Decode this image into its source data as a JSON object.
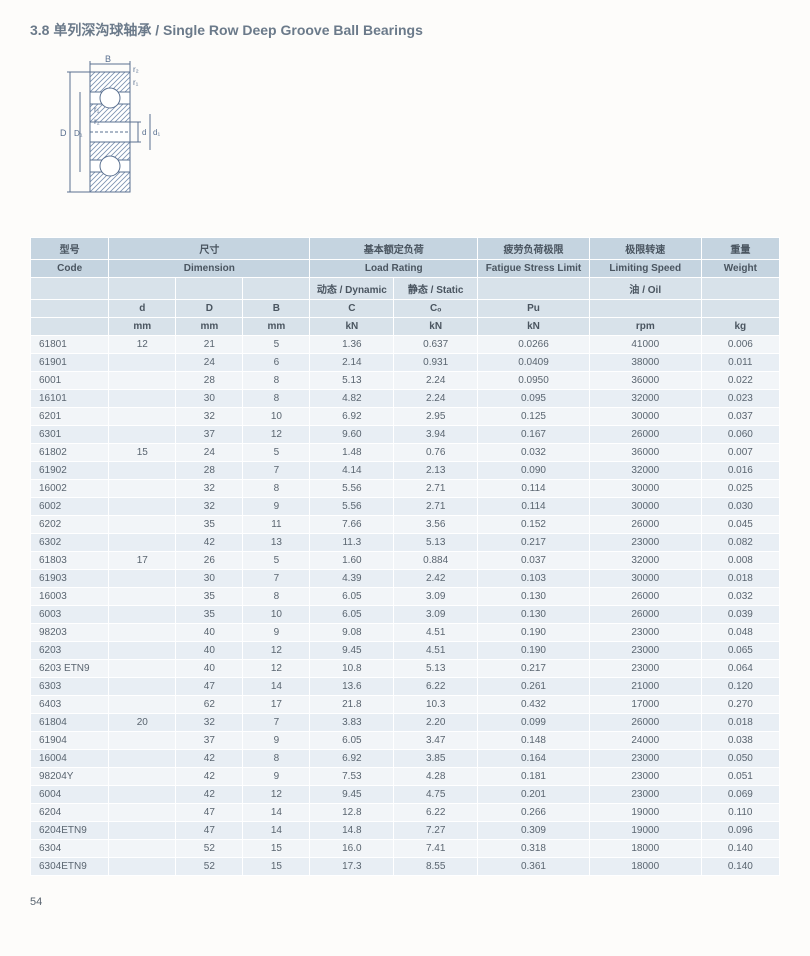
{
  "title_section": "3.8",
  "title_cn": "单列深沟球轴承",
  "title_en": "Single Row Deep Groove Ball Bearings",
  "page_number": "54",
  "diagram": {
    "labels": [
      "B",
      "r₂",
      "r₁",
      "r₁",
      "r₂",
      "D",
      "D₁",
      "d",
      "d₁"
    ],
    "stroke": "#5a7090",
    "fill_hatch": "#7a90b0"
  },
  "table": {
    "header_bg": "#c5d4e0",
    "sub_bg": "#d8e2ea",
    "row_odd_bg": "#f2f5f8",
    "row_even_bg": "#e8eef4",
    "text_color": "#5a6570",
    "border_color": "#ffffff",
    "group_headers_cn": [
      "型号",
      "尺寸",
      "基本额定负荷",
      "疲劳负荷极限",
      "极限转速",
      "重量"
    ],
    "group_headers_en": [
      "Code",
      "Dimension",
      "Load Rating",
      "Fatigue Stress Limit",
      "Limiting Speed",
      "Weight"
    ],
    "sub_headers_1": [
      "",
      "",
      "",
      "",
      "动态 / Dynamic",
      "静态 / Static",
      "",
      "油 / Oil",
      ""
    ],
    "sub_headers_2": [
      "",
      "d",
      "D",
      "B",
      "C",
      "Cₒ",
      "Pu",
      "",
      ""
    ],
    "units": [
      "",
      "mm",
      "mm",
      "mm",
      "kN",
      "kN",
      "kN",
      "rpm",
      "kg"
    ],
    "col_widths": [
      "70px",
      "60px",
      "60px",
      "60px",
      "75px",
      "75px",
      "100px",
      "100px",
      "70px"
    ],
    "rows": [
      [
        "61801",
        "12",
        "21",
        "5",
        "1.36",
        "0.637",
        "0.0266",
        "41000",
        "0.006"
      ],
      [
        "61901",
        "",
        "24",
        "6",
        "2.14",
        "0.931",
        "0.0409",
        "38000",
        "0.011"
      ],
      [
        "6001",
        "",
        "28",
        "8",
        "5.13",
        "2.24",
        "0.0950",
        "36000",
        "0.022"
      ],
      [
        "16101",
        "",
        "30",
        "8",
        "4.82",
        "2.24",
        "0.095",
        "32000",
        "0.023"
      ],
      [
        "6201",
        "",
        "32",
        "10",
        "6.92",
        "2.95",
        "0.125",
        "30000",
        "0.037"
      ],
      [
        "6301",
        "",
        "37",
        "12",
        "9.60",
        "3.94",
        "0.167",
        "26000",
        "0.060"
      ],
      [
        "61802",
        "15",
        "24",
        "5",
        "1.48",
        "0.76",
        "0.032",
        "36000",
        "0.007"
      ],
      [
        "61902",
        "",
        "28",
        "7",
        "4.14",
        "2.13",
        "0.090",
        "32000",
        "0.016"
      ],
      [
        "16002",
        "",
        "32",
        "8",
        "5.56",
        "2.71",
        "0.114",
        "30000",
        "0.025"
      ],
      [
        "6002",
        "",
        "32",
        "9",
        "5.56",
        "2.71",
        "0.114",
        "30000",
        "0.030"
      ],
      [
        "6202",
        "",
        "35",
        "11",
        "7.66",
        "3.56",
        "0.152",
        "26000",
        "0.045"
      ],
      [
        "6302",
        "",
        "42",
        "13",
        "11.3",
        "5.13",
        "0.217",
        "23000",
        "0.082"
      ],
      [
        "61803",
        "17",
        "26",
        "5",
        "1.60",
        "0.884",
        "0.037",
        "32000",
        "0.008"
      ],
      [
        "61903",
        "",
        "30",
        "7",
        "4.39",
        "2.42",
        "0.103",
        "30000",
        "0.018"
      ],
      [
        "16003",
        "",
        "35",
        "8",
        "6.05",
        "3.09",
        "0.130",
        "26000",
        "0.032"
      ],
      [
        "6003",
        "",
        "35",
        "10",
        "6.05",
        "3.09",
        "0.130",
        "26000",
        "0.039"
      ],
      [
        "98203",
        "",
        "40",
        "9",
        "9.08",
        "4.51",
        "0.190",
        "23000",
        "0.048"
      ],
      [
        "6203",
        "",
        "40",
        "12",
        "9.45",
        "4.51",
        "0.190",
        "23000",
        "0.065"
      ],
      [
        "6203 ETN9",
        "",
        "40",
        "12",
        "10.8",
        "5.13",
        "0.217",
        "23000",
        "0.064"
      ],
      [
        "6303",
        "",
        "47",
        "14",
        "13.6",
        "6.22",
        "0.261",
        "21000",
        "0.120"
      ],
      [
        "6403",
        "",
        "62",
        "17",
        "21.8",
        "10.3",
        "0.432",
        "17000",
        "0.270"
      ],
      [
        "61804",
        "20",
        "32",
        "7",
        "3.83",
        "2.20",
        "0.099",
        "26000",
        "0.018"
      ],
      [
        "61904",
        "",
        "37",
        "9",
        "6.05",
        "3.47",
        "0.148",
        "24000",
        "0.038"
      ],
      [
        "16004",
        "",
        "42",
        "8",
        "6.92",
        "3.85",
        "0.164",
        "23000",
        "0.050"
      ],
      [
        "98204Y",
        "",
        "42",
        "9",
        "7.53",
        "4.28",
        "0.181",
        "23000",
        "0.051"
      ],
      [
        "6004",
        "",
        "42",
        "12",
        "9.45",
        "4.75",
        "0.201",
        "23000",
        "0.069"
      ],
      [
        "6204",
        "",
        "47",
        "14",
        "12.8",
        "6.22",
        "0.266",
        "19000",
        "0.110"
      ],
      [
        "6204ETN9",
        "",
        "47",
        "14",
        "14.8",
        "7.27",
        "0.309",
        "19000",
        "0.096"
      ],
      [
        "6304",
        "",
        "52",
        "15",
        "16.0",
        "7.41",
        "0.318",
        "18000",
        "0.140"
      ],
      [
        "6304ETN9",
        "",
        "52",
        "15",
        "17.3",
        "8.55",
        "0.361",
        "18000",
        "0.140"
      ]
    ]
  }
}
